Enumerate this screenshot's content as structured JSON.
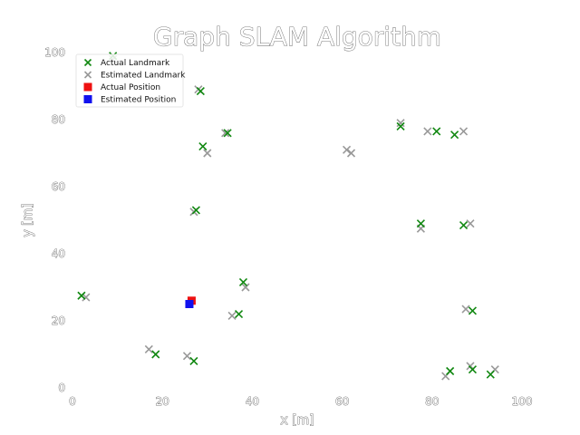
{
  "chart_data": {
    "type": "scatter",
    "title": "Graph SLAM Algorithm",
    "xlabel": "x [m]",
    "ylabel": "y [m]",
    "xlim": [
      0,
      100
    ],
    "ylim": [
      0,
      100
    ],
    "xticks": [
      "0",
      "20",
      "40",
      "60",
      "80",
      "100"
    ],
    "yticks": [
      "0",
      "20",
      "40",
      "60",
      "80",
      "100"
    ],
    "grid": false,
    "legend_position": "top-left",
    "series": [
      {
        "name": "Actual Landmark",
        "marker": "x",
        "color": "#118811",
        "points": [
          [
            9,
            99
          ],
          [
            28.5,
            88.5
          ],
          [
            34.5,
            76
          ],
          [
            29,
            72
          ],
          [
            27.5,
            53
          ],
          [
            73,
            78
          ],
          [
            81,
            76.5
          ],
          [
            85,
            75.5
          ],
          [
            77.5,
            49
          ],
          [
            87,
            48.5
          ],
          [
            2,
            27.5
          ],
          [
            38,
            31.5
          ],
          [
            37,
            22
          ],
          [
            18.5,
            10
          ],
          [
            27,
            8
          ],
          [
            89,
            23
          ],
          [
            84,
            5
          ],
          [
            89,
            5.5
          ],
          [
            93,
            4
          ]
        ]
      },
      {
        "name": "Estimated Landmark",
        "marker": "x",
        "color": "#999999",
        "points": [
          [
            9,
            98
          ],
          [
            28,
            89
          ],
          [
            34,
            76
          ],
          [
            30,
            70
          ],
          [
            27,
            52.5
          ],
          [
            61,
            71
          ],
          [
            62,
            70
          ],
          [
            73,
            79
          ],
          [
            79,
            76.5
          ],
          [
            87,
            76.5
          ],
          [
            77.5,
            47.5
          ],
          [
            88.5,
            49
          ],
          [
            3,
            27
          ],
          [
            38.5,
            30
          ],
          [
            35.5,
            21.5
          ],
          [
            17,
            11.5
          ],
          [
            25.5,
            9.5
          ],
          [
            87.5,
            23.5
          ],
          [
            83,
            3.5
          ],
          [
            88.5,
            6.5
          ],
          [
            94,
            5.5
          ]
        ]
      },
      {
        "name": "Actual Position",
        "marker": "square",
        "color": "#ee1111",
        "points": [
          [
            26.5,
            26
          ]
        ]
      },
      {
        "name": "Estimated Position",
        "marker": "square",
        "color": "#1111ee",
        "points": [
          [
            26,
            25
          ]
        ]
      }
    ]
  }
}
